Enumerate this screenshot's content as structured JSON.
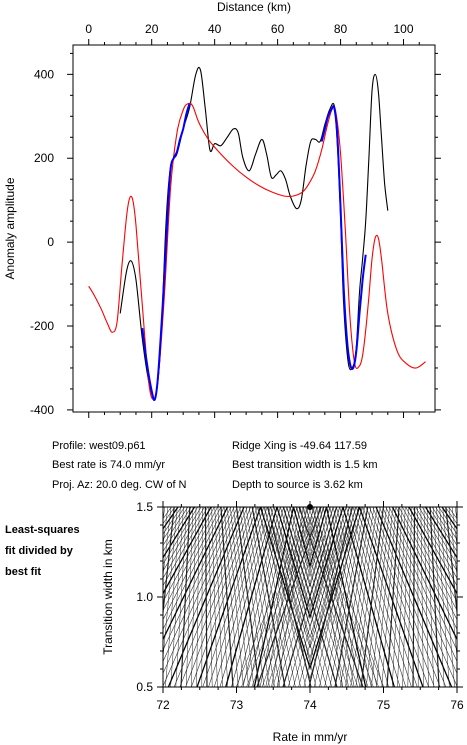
{
  "chart_data": [
    {
      "type": "line",
      "xlabel": "Distance (km)",
      "ylabel": "Anomaly amplitude",
      "xlim": [
        -5,
        110
      ],
      "ylim": [
        -405,
        470
      ],
      "xticks": [
        0,
        20,
        40,
        60,
        80,
        100
      ],
      "yticks": [
        -400,
        -200,
        0,
        200,
        400
      ],
      "grid": false,
      "series": [
        {
          "color": "#000000",
          "x": [
            10,
            12,
            13.5,
            15,
            17,
            19,
            20.5,
            21.5,
            23,
            24.5,
            26,
            28,
            30,
            32,
            34,
            35.5,
            37,
            38.5,
            40,
            42,
            44,
            46,
            47.5,
            49,
            51,
            53,
            55,
            56.5,
            58,
            59.5,
            61,
            62.5,
            64,
            66,
            67.5,
            69,
            70.5,
            72,
            73.5,
            75,
            76.5,
            78,
            79,
            80,
            81,
            82.5,
            84,
            85,
            86,
            87,
            88,
            89,
            90,
            91,
            92,
            93,
            94,
            95
          ],
          "y": [
            -170,
            -70,
            -45,
            -90,
            -230,
            -330,
            -370,
            -360,
            -230,
            40,
            180,
            210,
            270,
            320,
            400,
            410,
            320,
            220,
            235,
            230,
            250,
            270,
            260,
            200,
            170,
            210,
            245,
            210,
            155,
            160,
            170,
            150,
            110,
            80,
            100,
            180,
            240,
            245,
            240,
            280,
            315,
            325,
            230,
            60,
            -150,
            -290,
            -295,
            -250,
            -120,
            -40,
            50,
            200,
            360,
            400,
            360,
            250,
            140,
            75
          ]
        },
        {
          "color": "#ff0000",
          "x": [
            0,
            2,
            4,
            6,
            7.5,
            9,
            10.5,
            12,
            13,
            14,
            15,
            17,
            19,
            20.5,
            22,
            24,
            26,
            28,
            30,
            31.5,
            33,
            35,
            38,
            42,
            46,
            50,
            54,
            58,
            62,
            65,
            68,
            70,
            72,
            74,
            76,
            77.5,
            78.5,
            80,
            81.5,
            83,
            84.5,
            86,
            87,
            88,
            89,
            90,
            91,
            92,
            93,
            95,
            98,
            101,
            104,
            107
          ],
          "y": [
            -105,
            -130,
            -160,
            -195,
            -215,
            -190,
            -60,
            60,
            105,
            100,
            40,
            -150,
            -330,
            -375,
            -330,
            -130,
            130,
            260,
            315,
            330,
            325,
            285,
            245,
            210,
            180,
            155,
            135,
            120,
            110,
            110,
            120,
            140,
            170,
            220,
            285,
            320,
            310,
            210,
            30,
            -180,
            -290,
            -295,
            -270,
            -210,
            -130,
            -40,
            10,
            10,
            -40,
            -170,
            -260,
            -290,
            -300,
            -285
          ]
        },
        {
          "color": "#0000ff",
          "x": [
            17,
            18.5,
            20,
            21,
            22,
            23.5,
            25,
            26,
            27,
            28,
            29,
            30,
            31,
            32
          ],
          "y": [
            -205,
            -290,
            -355,
            -375,
            -320,
            -150,
            60,
            175,
            200,
            215,
            245,
            270,
            305,
            330
          ]
        },
        {
          "color": "#0000ff",
          "x": [
            74,
            75,
            76,
            77,
            78,
            79,
            80,
            81,
            82,
            83,
            84,
            85,
            86,
            87,
            88
          ],
          "y": [
            240,
            270,
            300,
            315,
            320,
            250,
            80,
            -110,
            -230,
            -290,
            -300,
            -260,
            -170,
            -90,
            -30
          ]
        }
      ]
    },
    {
      "type": "contour",
      "xlabel": "Rate in mm/yr",
      "ylabel": "Transition width in km",
      "xlim": [
        72,
        76
      ],
      "ylim": [
        0.5,
        1.5
      ],
      "xticks": [
        72,
        73,
        74,
        75,
        76
      ],
      "yticks": [
        0.5,
        1.0,
        1.5
      ],
      "best_fit": {
        "rate": 74.0,
        "width": 1.5
      }
    }
  ],
  "info": {
    "profile": "Profile: west09.p61",
    "best_rate": "Best rate is 74.0 mm/yr",
    "proj_az": "Proj. Az: 20.0 deg. CW of N",
    "ridge_xing": "Ridge Xing is -49.64 117.59",
    "best_transition": "Best transition width is 1.5 km",
    "depth": "Depth to source is   3.62 km"
  },
  "note": [
    "Least-squares",
    "fit divided by",
    "best fit"
  ]
}
